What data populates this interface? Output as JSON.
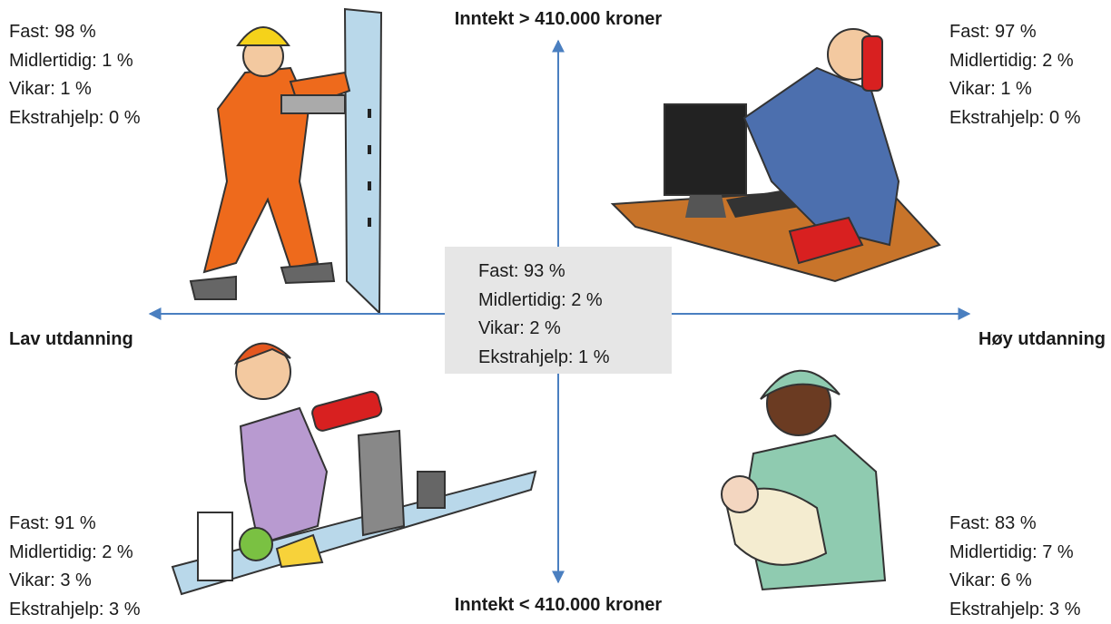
{
  "axes": {
    "top": "Inntekt > 410.000 kroner",
    "bottom": "Inntekt < 410.000 kroner",
    "left": "Lav utdanning",
    "right": "Høy utdanning"
  },
  "center": {
    "lines": [
      "Fast: 93 %",
      "Midlertidig: 2 %",
      "Vikar: 2 %",
      "Ekstrahjelp: 1 %"
    ]
  },
  "quadrants": {
    "top_left": {
      "lines": [
        "Fast: 98 %",
        "Midlertidig: 1 %",
        "Vikar: 1 %",
        "Ekstrahjelp: 0 %"
      ]
    },
    "top_right": {
      "lines": [
        "Fast: 97 %",
        "Midlertidig: 2 %",
        "Vikar: 1 %",
        "Ekstrahjelp: 0 %"
      ]
    },
    "bottom_left": {
      "lines": [
        "Fast: 91 %",
        "Midlertidig: 2 %",
        "Vikar: 3 %",
        "Ekstrahjelp: 3 %"
      ]
    },
    "bottom_right": {
      "lines": [
        "Fast: 83 %",
        "Midlertidig: 7 %",
        "Vikar: 6 %",
        "Ekstrahjelp: 3 %"
      ]
    }
  }
}
